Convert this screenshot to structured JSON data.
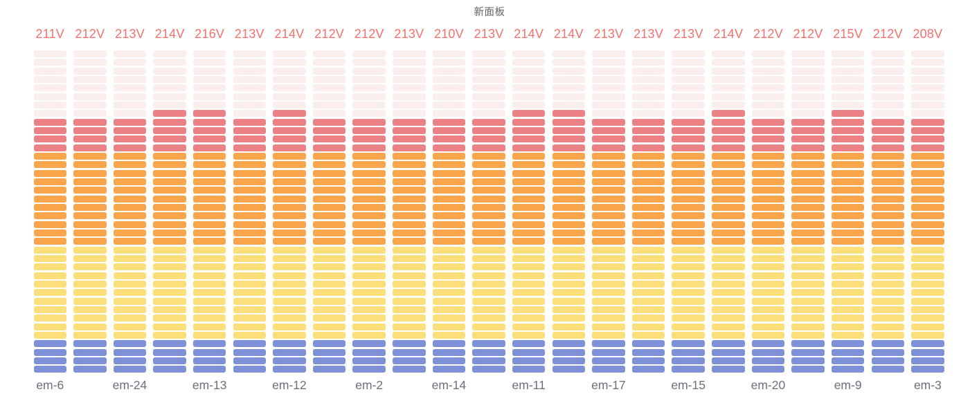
{
  "panel": {
    "title": "新面板"
  },
  "colors": {
    "background": "#FFFFFF",
    "title_text": "#5F6168",
    "value_text": "#F3716D",
    "axis_label_text": "#6B6F7A",
    "segment_unlit": "#FBEFEE",
    "segment_red": "#EB8085",
    "segment_orange": "#F9A54B",
    "segment_yellow": "#FADF7B",
    "segment_blue": "#7E91D6"
  },
  "chart_data": {
    "type": "bar",
    "subtype": "vertical-lcd-bar-gauge",
    "title": "新面板",
    "unit": "V",
    "grid": false,
    "legend_position": "none",
    "total_rows": 38,
    "zones_bottom_up": [
      {
        "name": "blue",
        "rows": 4
      },
      {
        "name": "yellow",
        "rows": 11
      },
      {
        "name": "orange",
        "rows": 11
      },
      {
        "name": "red",
        "rows": 12
      }
    ],
    "gauges": [
      {
        "display": "211V",
        "value": 211,
        "lit_rows": 30
      },
      {
        "display": "212V",
        "value": 212,
        "lit_rows": 30
      },
      {
        "display": "213V",
        "value": 213,
        "lit_rows": 30
      },
      {
        "display": "214V",
        "value": 214,
        "lit_rows": 31
      },
      {
        "display": "216V",
        "value": 216,
        "lit_rows": 31
      },
      {
        "display": "213V",
        "value": 213,
        "lit_rows": 30
      },
      {
        "display": "214V",
        "value": 214,
        "lit_rows": 31
      },
      {
        "display": "212V",
        "value": 212,
        "lit_rows": 30
      },
      {
        "display": "212V",
        "value": 212,
        "lit_rows": 30
      },
      {
        "display": "213V",
        "value": 213,
        "lit_rows": 30
      },
      {
        "display": "210V",
        "value": 210,
        "lit_rows": 30
      },
      {
        "display": "213V",
        "value": 213,
        "lit_rows": 30
      },
      {
        "display": "214V",
        "value": 214,
        "lit_rows": 31
      },
      {
        "display": "214V",
        "value": 214,
        "lit_rows": 31
      },
      {
        "display": "213V",
        "value": 213,
        "lit_rows": 30
      },
      {
        "display": "213V",
        "value": 213,
        "lit_rows": 30
      },
      {
        "display": "213V",
        "value": 213,
        "lit_rows": 30
      },
      {
        "display": "214V",
        "value": 214,
        "lit_rows": 31
      },
      {
        "display": "212V",
        "value": 212,
        "lit_rows": 30
      },
      {
        "display": "212V",
        "value": 212,
        "lit_rows": 30
      },
      {
        "display": "215V",
        "value": 215,
        "lit_rows": 31
      },
      {
        "display": "212V",
        "value": 212,
        "lit_rows": 30
      },
      {
        "display": "208V",
        "value": 208,
        "lit_rows": 30
      }
    ],
    "x_labels": [
      "em-6",
      "em-24",
      "em-13",
      "em-12",
      "em-2",
      "em-14",
      "em-11",
      "em-17",
      "em-15",
      "em-20",
      "em-9",
      "em-3"
    ],
    "x_labels_under_columns": [
      1,
      3,
      5,
      7,
      9,
      11,
      13,
      15,
      17,
      19,
      21,
      23
    ]
  }
}
